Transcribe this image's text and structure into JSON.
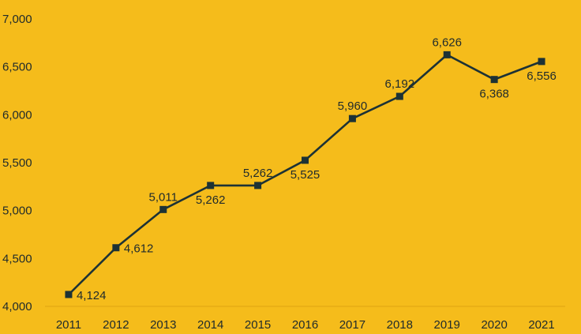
{
  "chart_data": {
    "type": "line",
    "title": "",
    "xlabel": "",
    "ylabel": "",
    "categories": [
      "2011",
      "2012",
      "2013",
      "2014",
      "2015",
      "2016",
      "2017",
      "2018",
      "2019",
      "2020",
      "2021"
    ],
    "series": [
      {
        "values": [
          4124,
          4612,
          5011,
          5262,
          5262,
          5525,
          5960,
          6192,
          6626,
          6368,
          6556
        ],
        "labels": [
          "4,124",
          "4,612",
          "5,011",
          "5,262",
          "5,262",
          "5,525",
          "5,960",
          "6,192",
          "6,626",
          "6,368",
          "6,556"
        ],
        "label_positions": [
          "right",
          "right",
          "above",
          "below",
          "above",
          "below",
          "above",
          "above",
          "above",
          "below",
          "below"
        ]
      }
    ],
    "ylim": [
      4000,
      7000
    ],
    "yticks": [
      4000,
      4500,
      5000,
      5500,
      6000,
      6500,
      7000
    ],
    "ytick_labels": [
      "4,000",
      "4,500",
      "5,000",
      "5,500",
      "6,000",
      "6,500",
      "7,000"
    ],
    "grid": false,
    "legend": "none",
    "marker": "square",
    "colors": {
      "background": "#F5BC1B",
      "line": "#1d3235",
      "text": "#1f2a2c",
      "axis": "#e0a511"
    }
  }
}
